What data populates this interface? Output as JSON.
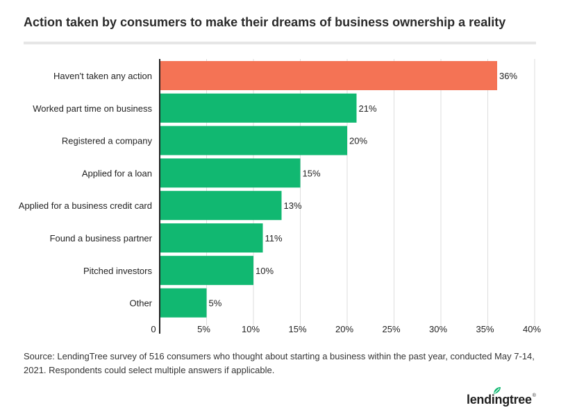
{
  "chart_data": {
    "type": "bar",
    "orientation": "horizontal",
    "title": "Action taken by consumers to make their dreams of business ownership a reality",
    "categories": [
      "Haven't taken any action",
      "Worked part time on business",
      "Registered a company",
      "Applied for a loan",
      "Applied for a business credit card",
      "Found a business partner",
      "Pitched investors",
      "Other"
    ],
    "values": [
      36,
      21,
      20,
      15,
      13,
      11,
      10,
      5
    ],
    "value_labels": [
      "36%",
      "21%",
      "20%",
      "15%",
      "13%",
      "11%",
      "10%",
      "5%"
    ],
    "highlight_index": 0,
    "xlim": [
      0,
      40
    ],
    "xticks": [
      0,
      5,
      10,
      15,
      20,
      25,
      30,
      35,
      40
    ],
    "xtick_labels": [
      "0",
      "5%",
      "10%",
      "15%",
      "20%",
      "25%",
      "30%",
      "35%",
      "40%"
    ],
    "xlabel": "",
    "ylabel": "",
    "grid": "vertical",
    "colors": {
      "highlight": "#f47355",
      "bar": "#11b871",
      "grid": "#dddddd",
      "axis": "#222222"
    }
  },
  "source": "Source: LendingTree survey of 516 consumers who thought about starting a business within the past year, conducted May 7-14, 2021. Respondents could select multiple answers if applicable.",
  "logo": {
    "text": "lendingtree",
    "mark": "®",
    "leaf_color": "#11b871"
  }
}
